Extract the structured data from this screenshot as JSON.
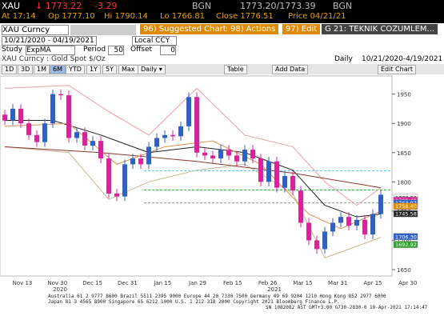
{
  "header": {
    "symbol": "XAU",
    "last": "1773.22",
    "change": "-3.29",
    "source": "BGN",
    "bid_ask": "1773.20/1773.39",
    "source2": "BGN",
    "stats": [
      "At 17:14",
      "Op 1777.10",
      "Hi 1790.14",
      "Lo 1766.81",
      "Close 1776.51",
      "Price 04/21/21"
    ]
  },
  "toolbar": {
    "ticker": "XAU Curncy",
    "buttons": [
      "96) Suggested Charts",
      "98) Actions",
      "97) Edit",
      "G 21: TEKNIK COZUMLEM..."
    ],
    "start": "10/21/2020",
    "end": "04/19/2021",
    "currency": "Local CCY",
    "range_buttons": [
      "1D",
      "3D",
      "1M",
      "6M",
      "YTD",
      "1Y",
      "5Y",
      "Max",
      "Daily ▾",
      "Table",
      "Add Data",
      "Edit Chart"
    ]
  },
  "study": {
    "label": "Study",
    "name": "ExpMA",
    "period_label": "Period",
    "period": "50",
    "offset_label": "Offset",
    "offset": "0"
  },
  "chart_data": {
    "type": "candlestick",
    "title": "XAU Curncy : Gold Spot",
    "unit": "$/Oz",
    "frequency": "Daily",
    "range": "10/21/2020-4/19/2021",
    "up_color": "#2f5fc8",
    "down_color": "#e0209a",
    "open": [
      1915,
      1905,
      1925,
      1900,
      1880,
      1868,
      1900,
      1950,
      1948,
      1875,
      1885,
      1862,
      1870,
      1840,
      1780,
      1775,
      1830,
      1840,
      1830,
      1860,
      1875,
      1880,
      1878,
      1895,
      1945,
      1850,
      1845,
      1840,
      1855,
      1845,
      1835,
      1855,
      1840,
      1800,
      1835,
      1790,
      1810,
      1785,
      1730,
      1700,
      1685,
      1715,
      1730,
      1740,
      1725,
      1735,
      1710,
      1745
    ],
    "high": [
      1923,
      1933,
      1933,
      1908,
      1888,
      1908,
      1958,
      1958,
      1956,
      1893,
      1893,
      1878,
      1878,
      1848,
      1788,
      1838,
      1848,
      1848,
      1868,
      1883,
      1888,
      1888,
      1903,
      1953,
      1953,
      1858,
      1853,
      1863,
      1863,
      1853,
      1863,
      1863,
      1848,
      1843,
      1843,
      1818,
      1818,
      1793,
      1738,
      1708,
      1723,
      1738,
      1748,
      1748,
      1743,
      1743,
      1753,
      1786
    ],
    "low": [
      1897,
      1897,
      1892,
      1872,
      1860,
      1860,
      1892,
      1940,
      1867,
      1867,
      1854,
      1854,
      1832,
      1772,
      1767,
      1767,
      1822,
      1822,
      1822,
      1852,
      1867,
      1870,
      1870,
      1887,
      1842,
      1837,
      1832,
      1832,
      1837,
      1827,
      1827,
      1832,
      1792,
      1792,
      1782,
      1782,
      1777,
      1722,
      1692,
      1677,
      1677,
      1707,
      1722,
      1717,
      1717,
      1702,
      1702,
      1737
    ],
    "close": [
      1905,
      1925,
      1900,
      1880,
      1868,
      1900,
      1950,
      1948,
      1875,
      1885,
      1862,
      1870,
      1840,
      1780,
      1775,
      1830,
      1840,
      1830,
      1860,
      1875,
      1880,
      1878,
      1895,
      1945,
      1850,
      1845,
      1840,
      1855,
      1845,
      1835,
      1855,
      1840,
      1800,
      1835,
      1790,
      1810,
      1785,
      1730,
      1700,
      1685,
      1715,
      1730,
      1740,
      1725,
      1735,
      1710,
      1745,
      1778
    ],
    "lines": [
      {
        "color": "#222222",
        "x": [
          0,
          6,
          12,
          18,
          24,
          30,
          36,
          40,
          44,
          47
        ],
        "values": [
          1905,
          1905,
          1880,
          1850,
          1860,
          1850,
          1820,
          1760,
          1740,
          1745
        ]
      },
      {
        "color": "#e8a0a8",
        "x": [
          0,
          8,
          13,
          18,
          24,
          30,
          36,
          40,
          44,
          47
        ],
        "values": [
          1960,
          1965,
          1920,
          1880,
          1960,
          1880,
          1860,
          1800,
          1760,
          1790
        ]
      },
      {
        "color": "#c8b890",
        "x": [
          0,
          8,
          13,
          18,
          24,
          30,
          36,
          40,
          44,
          47
        ],
        "values": [
          1860,
          1850,
          1770,
          1800,
          1820,
          1830,
          1780,
          1670,
          1690,
          1705
        ]
      },
      {
        "color": "#8b3a2a",
        "x": [
          0,
          12,
          24,
          36,
          47
        ],
        "values": [
          1860,
          1850,
          1835,
          1815,
          1790
        ]
      },
      {
        "color": "#e09050",
        "x": [
          0,
          8,
          14,
          20,
          26,
          32,
          38,
          42,
          47
        ],
        "values": [
          1895,
          1900,
          1830,
          1860,
          1870,
          1830,
          1745,
          1720,
          1750
        ]
      }
    ],
    "reference_lines": [
      {
        "value": 1819,
        "color": "#40c8e8"
      },
      {
        "value": 1786,
        "color": "#30c030"
      },
      {
        "value": 1764,
        "color": "#999999"
      }
    ],
    "price_tags": [
      {
        "value": 1773.22,
        "label": "1773.22",
        "color": "#ffffff"
      },
      {
        "value": 1768.48,
        "label": "1768.48",
        "color": "#e0209a"
      },
      {
        "value": 1763.97,
        "label": "1763.97",
        "color": "#2f5fc8"
      },
      {
        "value": 1758.4,
        "label": "1758.40",
        "color": "#e08a00"
      },
      {
        "value": 1745.58,
        "label": "1745.58",
        "color": "#222222"
      },
      {
        "value": 1706.3,
        "label": "1706.30",
        "color": "#2f5fc8"
      },
      {
        "value": 1692.92,
        "label": "1692.92",
        "color": "#30a030"
      }
    ],
    "ylim": [
      1639,
      1981
    ],
    "yticks": [
      1650,
      1700,
      1750,
      1800,
      1850,
      1900,
      1950
    ],
    "x_labels": [
      "Nov 13",
      "Nov 30",
      "Dec 15",
      "Dec 31",
      "Jan 15",
      "Jan 29",
      "Feb 15",
      "Feb 26",
      "Mar 15",
      "Mar 31",
      "Apr 15",
      "Apr 30"
    ],
    "year_labels": [
      "2020",
      "2021"
    ]
  },
  "footer": [
    "Australia 61 2 9777 8600 Brazil 5511 2395 9000 Europe 44 20 7330 7500 Germany 49 69 9204 1210 Hong Kong 852 2977 6000",
    "Japan 81 3 4565 8900      Singapore 65 6212 1000      U.S. 1 212 318 2000     Copyright 2021 Bloomberg Finance L.P.",
    "SN 1082082 AST  GMT+3:00 G730-2830-0 19-Apr-2021 17:14:47"
  ]
}
